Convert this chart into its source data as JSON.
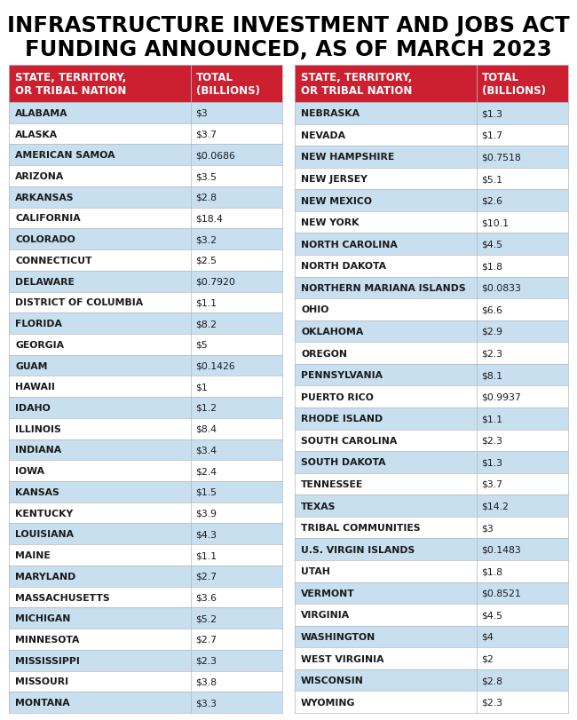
{
  "title_line1": "INFRASTRUCTURE INVESTMENT AND JOBS ACT",
  "title_line2": "FUNDING ANNOUNCED, AS OF MARCH 2023",
  "left_data": [
    [
      "ALABAMA",
      "$3"
    ],
    [
      "ALASKA",
      "$3.7"
    ],
    [
      "AMERICAN SAMOA",
      "$0.0686"
    ],
    [
      "ARIZONA",
      "$3.5"
    ],
    [
      "ARKANSAS",
      "$2.8"
    ],
    [
      "CALIFORNIA",
      "$18.4"
    ],
    [
      "COLORADO",
      "$3.2"
    ],
    [
      "CONNECTICUT",
      "$2.5"
    ],
    [
      "DELAWARE",
      "$0.7920"
    ],
    [
      "DISTRICT OF COLUMBIA",
      "$1.1"
    ],
    [
      "FLORIDA",
      "$8.2"
    ],
    [
      "GEORGIA",
      "$5"
    ],
    [
      "GUAM",
      "$0.1426"
    ],
    [
      "HAWAII",
      "$1"
    ],
    [
      "IDAHO",
      "$1.2"
    ],
    [
      "ILLINOIS",
      "$8.4"
    ],
    [
      "INDIANA",
      "$3.4"
    ],
    [
      "IOWA",
      "$2.4"
    ],
    [
      "KANSAS",
      "$1.5"
    ],
    [
      "KENTUCKY",
      "$3.9"
    ],
    [
      "LOUISIANA",
      "$4.3"
    ],
    [
      "MAINE",
      "$1.1"
    ],
    [
      "MARYLAND",
      "$2.7"
    ],
    [
      "MASSACHUSETTS",
      "$3.6"
    ],
    [
      "MICHIGAN",
      "$5.2"
    ],
    [
      "MINNESOTA",
      "$2.7"
    ],
    [
      "MISSISSIPPI",
      "$2.3"
    ],
    [
      "MISSOURI",
      "$3.8"
    ],
    [
      "MONTANA",
      "$3.3"
    ]
  ],
  "right_data": [
    [
      "NEBRASKA",
      "$1.3"
    ],
    [
      "NEVADA",
      "$1.7"
    ],
    [
      "NEW HAMPSHIRE",
      "$0.7518"
    ],
    [
      "NEW JERSEY",
      "$5.1"
    ],
    [
      "NEW MEXICO",
      "$2.6"
    ],
    [
      "NEW YORK",
      "$10.1"
    ],
    [
      "NORTH CAROLINA",
      "$4.5"
    ],
    [
      "NORTH DAKOTA",
      "$1.8"
    ],
    [
      "NORTHERN MARIANA ISLANDS",
      "$0.0833"
    ],
    [
      "OHIO",
      "$6.6"
    ],
    [
      "OKLAHOMA",
      "$2.9"
    ],
    [
      "OREGON",
      "$2.3"
    ],
    [
      "PENNSYLVANIA",
      "$8.1"
    ],
    [
      "PUERTO RICO",
      "$0.9937"
    ],
    [
      "RHODE ISLAND",
      "$1.1"
    ],
    [
      "SOUTH CAROLINA",
      "$2.3"
    ],
    [
      "SOUTH DAKOTA",
      "$1.3"
    ],
    [
      "TENNESSEE",
      "$3.7"
    ],
    [
      "TEXAS",
      "$14.2"
    ],
    [
      "TRIBAL COMMUNITIES",
      "$3"
    ],
    [
      "U.S. VIRGIN ISLANDS",
      "$0.1483"
    ],
    [
      "UTAH",
      "$1.8"
    ],
    [
      "VERMONT",
      "$0.8521"
    ],
    [
      "VIRGINIA",
      "$4.5"
    ],
    [
      "WASHINGTON",
      "$4"
    ],
    [
      "WEST VIRGINIA",
      "$2"
    ],
    [
      "WISCONSIN",
      "$2.8"
    ],
    [
      "WYOMING",
      "$2.3"
    ]
  ],
  "header_bg": "#cc2030",
  "header_text": "#ffffff",
  "row_even_bg": "#c8dff0",
  "row_odd_bg": "#ffffff",
  "border_color": "#b0b8c0",
  "title_color": "#000000",
  "bg_color": "#ffffff",
  "row_text_color": "#1a1a1a",
  "title_fontsize": 17.5,
  "header_fontsize": 8.5,
  "row_fontsize": 7.8
}
